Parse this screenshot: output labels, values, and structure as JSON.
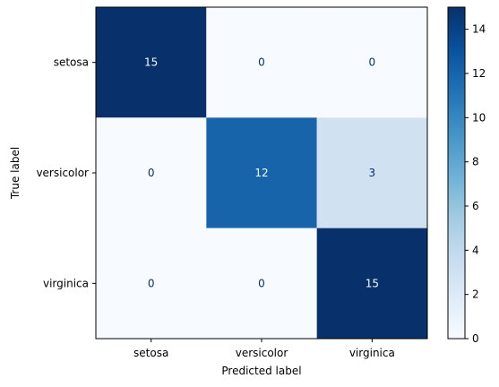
{
  "chart_data": {
    "type": "heatmap",
    "title": "",
    "xlabel": "Predicted label",
    "ylabel": "True label",
    "x_categories": [
      "setosa",
      "versicolor",
      "virginica"
    ],
    "y_categories": [
      "setosa",
      "versicolor",
      "virginica"
    ],
    "values": [
      [
        15,
        0,
        0
      ],
      [
        0,
        12,
        3
      ],
      [
        0,
        0,
        15
      ]
    ],
    "colormap": "Blues",
    "color_range": [
      0,
      15
    ],
    "colorbar_ticks": [
      0,
      2,
      4,
      6,
      8,
      10,
      12,
      14
    ],
    "text_colors": {
      "light_cell": "#08306b",
      "dark_cell": "#f7fbff"
    },
    "grid": false
  }
}
